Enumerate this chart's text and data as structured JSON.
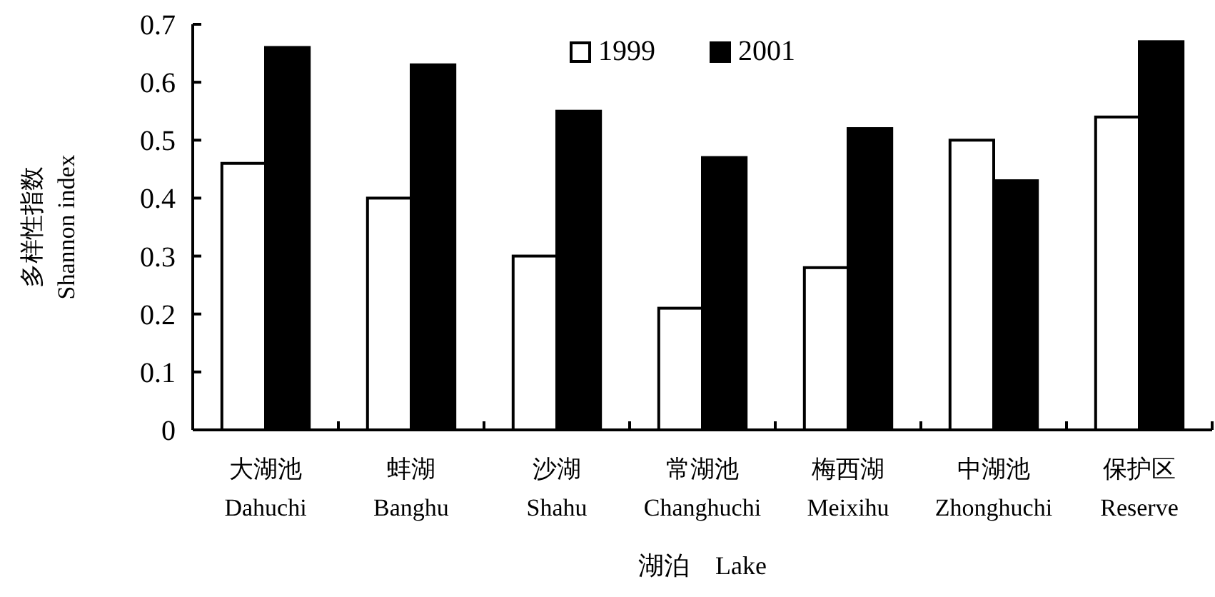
{
  "chart_data": {
    "type": "bar",
    "xlabel": "湖泊　Lake",
    "ylabel": "多样性指数\nShannon index",
    "categories": [
      "大湖池\nDahuchi",
      "蚌湖\nBanghu",
      "沙湖\nShahu",
      "常湖池\nChanghuchi",
      "梅西湖\nMeixihu",
      "中湖池\nZhonghuchi",
      "保护区\nReserve"
    ],
    "series": [
      {
        "name": "1999",
        "color": "#ffffff",
        "values": [
          0.46,
          0.4,
          0.3,
          0.21,
          0.28,
          0.5,
          0.54
        ]
      },
      {
        "name": "2001",
        "color": "#000000",
        "values": [
          0.66,
          0.63,
          0.55,
          0.47,
          0.52,
          0.43,
          0.67
        ]
      }
    ],
    "ylim": [
      0,
      0.7
    ],
    "yticks": [
      {
        "value": 0,
        "label": "0"
      },
      0.1,
      0.2,
      0.3,
      0.4,
      0.5,
      0.6,
      0.7
    ],
    "legend": "top",
    "grid": false
  }
}
